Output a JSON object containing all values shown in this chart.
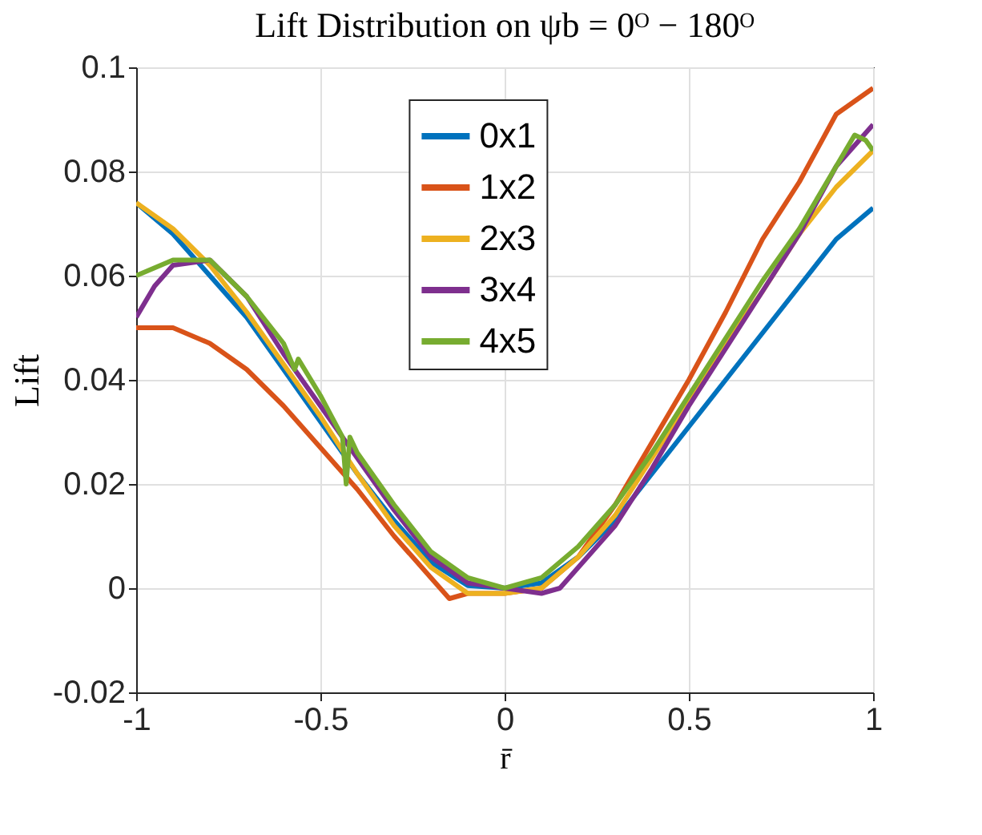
{
  "chart_data": {
    "type": "line",
    "title": "Lift Distribution on ψb = 0ᴼ − 180ᴼ",
    "xlabel": "r̄",
    "ylabel": "Lift",
    "xlim": [
      -1,
      1
    ],
    "xticks": [
      -1,
      -0.5,
      0,
      0.5,
      1
    ],
    "ylim": [
      -0.02,
      0.1
    ],
    "yticks": [
      -0.02,
      0,
      0.02,
      0.04,
      0.06,
      0.08,
      0.1
    ],
    "grid": true,
    "legend": "top",
    "line_style": "solid",
    "marker": "none",
    "series": [
      {
        "name": "0x1",
        "color": "#0072bd",
        "x": [
          -1,
          -0.9,
          -0.8,
          -0.7,
          -0.6,
          -0.5,
          -0.4,
          -0.3,
          -0.2,
          -0.1,
          0,
          0.1,
          0.2,
          0.3,
          0.4,
          0.5,
          0.6,
          0.7,
          0.8,
          0.9,
          1
        ],
        "values": [
          0.074,
          0.068,
          0.06,
          0.052,
          0.042,
          0.032,
          0.022,
          0.013,
          0.005,
          0.0005,
          0,
          0.001,
          0.006,
          0.013,
          0.022,
          0.031,
          0.04,
          0.049,
          0.058,
          0.067,
          0.073
        ]
      },
      {
        "name": "1x2",
        "color": "#d95319",
        "x": [
          -1,
          -0.9,
          -0.8,
          -0.7,
          -0.6,
          -0.5,
          -0.4,
          -0.3,
          -0.2,
          -0.15,
          -0.1,
          0,
          0.1,
          0.2,
          0.3,
          0.4,
          0.5,
          0.6,
          0.7,
          0.8,
          0.9,
          1
        ],
        "values": [
          0.05,
          0.05,
          0.047,
          0.042,
          0.035,
          0.027,
          0.019,
          0.01,
          0.002,
          -0.002,
          -0.001,
          -0.001,
          0,
          0.006,
          0.016,
          0.028,
          0.04,
          0.053,
          0.067,
          0.078,
          0.091,
          0.096
        ]
      },
      {
        "name": "2x3",
        "color": "#edb120",
        "x": [
          -1,
          -0.9,
          -0.8,
          -0.7,
          -0.6,
          -0.5,
          -0.4,
          -0.3,
          -0.2,
          -0.1,
          0,
          0.1,
          0.2,
          0.3,
          0.4,
          0.5,
          0.6,
          0.7,
          0.8,
          0.9,
          1
        ],
        "values": [
          0.074,
          0.069,
          0.062,
          0.053,
          0.043,
          0.033,
          0.022,
          0.012,
          0.004,
          -0.001,
          -0.001,
          0,
          0.006,
          0.014,
          0.025,
          0.036,
          0.047,
          0.057,
          0.068,
          0.077,
          0.084
        ]
      },
      {
        "name": "3x4",
        "color": "#7e2f8e",
        "x": [
          -1,
          -0.95,
          -0.9,
          -0.8,
          -0.7,
          -0.6,
          -0.5,
          -0.4,
          -0.3,
          -0.2,
          -0.1,
          0,
          0.1,
          0.15,
          0.2,
          0.3,
          0.4,
          0.5,
          0.6,
          0.7,
          0.8,
          0.9,
          1
        ],
        "values": [
          0.052,
          0.058,
          0.062,
          0.063,
          0.056,
          0.045,
          0.035,
          0.025,
          0.015,
          0.006,
          0.001,
          0,
          -0.001,
          0,
          0.004,
          0.012,
          0.023,
          0.035,
          0.046,
          0.057,
          0.068,
          0.081,
          0.089
        ]
      },
      {
        "name": "4x5",
        "color": "#77ac30",
        "x": [
          -1,
          -0.9,
          -0.8,
          -0.7,
          -0.6,
          -0.57,
          -0.56,
          -0.5,
          -0.44,
          -0.43,
          -0.42,
          -0.4,
          -0.3,
          -0.2,
          -0.1,
          0,
          0.1,
          0.2,
          0.3,
          0.4,
          0.5,
          0.6,
          0.7,
          0.8,
          0.9,
          0.95,
          0.98,
          1
        ],
        "values": [
          0.06,
          0.063,
          0.063,
          0.056,
          0.047,
          0.042,
          0.044,
          0.037,
          0.029,
          0.02,
          0.029,
          0.026,
          0.016,
          0.007,
          0.002,
          0,
          0.002,
          0.008,
          0.016,
          0.026,
          0.037,
          0.048,
          0.059,
          0.069,
          0.081,
          0.087,
          0.086,
          0.084
        ]
      }
    ]
  }
}
